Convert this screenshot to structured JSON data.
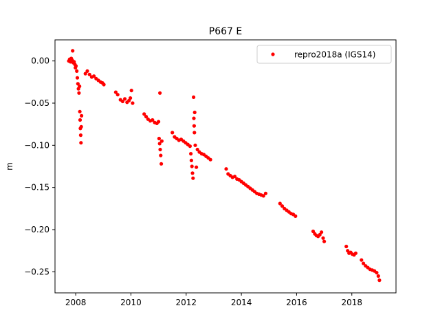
{
  "chart_data": {
    "type": "scatter",
    "title": "P667 E",
    "xlabel": "",
    "ylabel": "m",
    "xlim": [
      2007.25,
      2019.6
    ],
    "ylim": [
      -0.275,
      0.025
    ],
    "x_ticks": [
      2008,
      2010,
      2012,
      2014,
      2016,
      2018
    ],
    "x_tick_labels": [
      "2008",
      "2010",
      "2012",
      "2014",
      "2016",
      "2018"
    ],
    "y_ticks": [
      0.0,
      -0.05,
      -0.1,
      -0.15,
      -0.2,
      -0.25
    ],
    "y_tick_labels": [
      "0.00",
      "−0.05",
      "−0.10",
      "−0.15",
      "−0.20",
      "−0.25"
    ],
    "grid": false,
    "legend": {
      "placement": "top-right"
    },
    "series": [
      {
        "name": "repro2018a (IGS14)",
        "color": "#ff0000",
        "marker": "dot",
        "points": [
          [
            2007.75,
            0.0
          ],
          [
            2007.78,
            0.002
          ],
          [
            2007.81,
            -0.001
          ],
          [
            2007.84,
            0.003
          ],
          [
            2007.87,
            0.001
          ],
          [
            2007.89,
            0.012
          ],
          [
            2007.91,
            -0.002
          ],
          [
            2007.94,
            -0.001
          ],
          [
            2007.97,
            -0.004
          ],
          [
            2007.99,
            -0.008
          ],
          [
            2008.01,
            -0.006
          ],
          [
            2008.04,
            -0.012
          ],
          [
            2008.06,
            -0.02
          ],
          [
            2008.08,
            -0.027
          ],
          [
            2008.1,
            -0.033
          ],
          [
            2008.12,
            -0.038
          ],
          [
            2008.14,
            -0.03
          ],
          [
            2008.15,
            -0.06
          ],
          [
            2008.16,
            -0.07
          ],
          [
            2008.17,
            -0.08
          ],
          [
            2008.18,
            -0.088
          ],
          [
            2008.19,
            -0.097
          ],
          [
            2008.2,
            -0.078
          ],
          [
            2008.21,
            -0.065
          ],
          [
            2008.35,
            -0.015
          ],
          [
            2008.42,
            -0.012
          ],
          [
            2008.5,
            -0.016
          ],
          [
            2008.58,
            -0.019
          ],
          [
            2008.66,
            -0.018
          ],
          [
            2008.74,
            -0.021
          ],
          [
            2008.82,
            -0.023
          ],
          [
            2008.9,
            -0.025
          ],
          [
            2008.97,
            -0.026
          ],
          [
            2009.02,
            -0.028
          ],
          [
            2009.45,
            -0.037
          ],
          [
            2009.52,
            -0.04
          ],
          [
            2009.62,
            -0.046
          ],
          [
            2009.7,
            -0.048
          ],
          [
            2009.78,
            -0.045
          ],
          [
            2009.86,
            -0.049
          ],
          [
            2009.93,
            -0.047
          ],
          [
            2009.98,
            -0.044
          ],
          [
            2010.02,
            -0.035
          ],
          [
            2010.06,
            -0.05
          ],
          [
            2010.48,
            -0.063
          ],
          [
            2010.55,
            -0.066
          ],
          [
            2010.62,
            -0.069
          ],
          [
            2010.7,
            -0.071
          ],
          [
            2010.78,
            -0.07
          ],
          [
            2010.86,
            -0.073
          ],
          [
            2010.94,
            -0.074
          ],
          [
            2011.0,
            -0.072
          ],
          [
            2011.02,
            -0.092
          ],
          [
            2011.04,
            -0.098
          ],
          [
            2011.05,
            -0.038
          ],
          [
            2011.06,
            -0.105
          ],
          [
            2011.08,
            -0.112
          ],
          [
            2011.1,
            -0.122
          ],
          [
            2011.12,
            -0.095
          ],
          [
            2011.5,
            -0.085
          ],
          [
            2011.58,
            -0.09
          ],
          [
            2011.66,
            -0.092
          ],
          [
            2011.74,
            -0.094
          ],
          [
            2011.82,
            -0.093
          ],
          [
            2011.9,
            -0.095
          ],
          [
            2011.98,
            -0.097
          ],
          [
            2012.06,
            -0.099
          ],
          [
            2012.14,
            -0.101
          ],
          [
            2012.17,
            -0.11
          ],
          [
            2012.19,
            -0.118
          ],
          [
            2012.21,
            -0.125
          ],
          [
            2012.23,
            -0.133
          ],
          [
            2012.25,
            -0.139
          ],
          [
            2012.27,
            -0.043
          ],
          [
            2012.28,
            -0.068
          ],
          [
            2012.29,
            -0.077
          ],
          [
            2012.3,
            -0.085
          ],
          [
            2012.31,
            -0.061
          ],
          [
            2012.33,
            -0.1
          ],
          [
            2012.37,
            -0.126
          ],
          [
            2012.41,
            -0.105
          ],
          [
            2012.48,
            -0.108
          ],
          [
            2012.56,
            -0.11
          ],
          [
            2012.64,
            -0.111
          ],
          [
            2012.72,
            -0.113
          ],
          [
            2012.8,
            -0.115
          ],
          [
            2012.88,
            -0.117
          ],
          [
            2013.45,
            -0.128
          ],
          [
            2013.52,
            -0.134
          ],
          [
            2013.6,
            -0.136
          ],
          [
            2013.68,
            -0.138
          ],
          [
            2013.76,
            -0.137
          ],
          [
            2013.84,
            -0.14
          ],
          [
            2013.92,
            -0.141
          ],
          [
            2014.0,
            -0.143
          ],
          [
            2014.08,
            -0.145
          ],
          [
            2014.16,
            -0.147
          ],
          [
            2014.24,
            -0.149
          ],
          [
            2014.32,
            -0.151
          ],
          [
            2014.4,
            -0.153
          ],
          [
            2014.48,
            -0.155
          ],
          [
            2014.56,
            -0.157
          ],
          [
            2014.64,
            -0.158
          ],
          [
            2014.72,
            -0.159
          ],
          [
            2014.8,
            -0.16
          ],
          [
            2014.88,
            -0.157
          ],
          [
            2015.4,
            -0.169
          ],
          [
            2015.48,
            -0.172
          ],
          [
            2015.56,
            -0.175
          ],
          [
            2015.64,
            -0.177
          ],
          [
            2015.72,
            -0.179
          ],
          [
            2015.8,
            -0.181
          ],
          [
            2015.88,
            -0.182
          ],
          [
            2015.96,
            -0.184
          ],
          [
            2016.6,
            -0.202
          ],
          [
            2016.66,
            -0.205
          ],
          [
            2016.72,
            -0.207
          ],
          [
            2016.78,
            -0.208
          ],
          [
            2016.84,
            -0.206
          ],
          [
            2016.9,
            -0.203
          ],
          [
            2016.96,
            -0.21
          ],
          [
            2017.0,
            -0.214
          ],
          [
            2017.8,
            -0.22
          ],
          [
            2017.85,
            -0.225
          ],
          [
            2017.9,
            -0.228
          ],
          [
            2017.96,
            -0.227
          ],
          [
            2018.02,
            -0.229
          ],
          [
            2018.08,
            -0.23
          ],
          [
            2018.14,
            -0.228
          ],
          [
            2018.35,
            -0.236
          ],
          [
            2018.42,
            -0.24
          ],
          [
            2018.5,
            -0.243
          ],
          [
            2018.58,
            -0.245
          ],
          [
            2018.66,
            -0.247
          ],
          [
            2018.74,
            -0.248
          ],
          [
            2018.82,
            -0.249
          ],
          [
            2018.9,
            -0.251
          ],
          [
            2018.96,
            -0.255
          ],
          [
            2019.0,
            -0.26
          ]
        ]
      }
    ]
  }
}
